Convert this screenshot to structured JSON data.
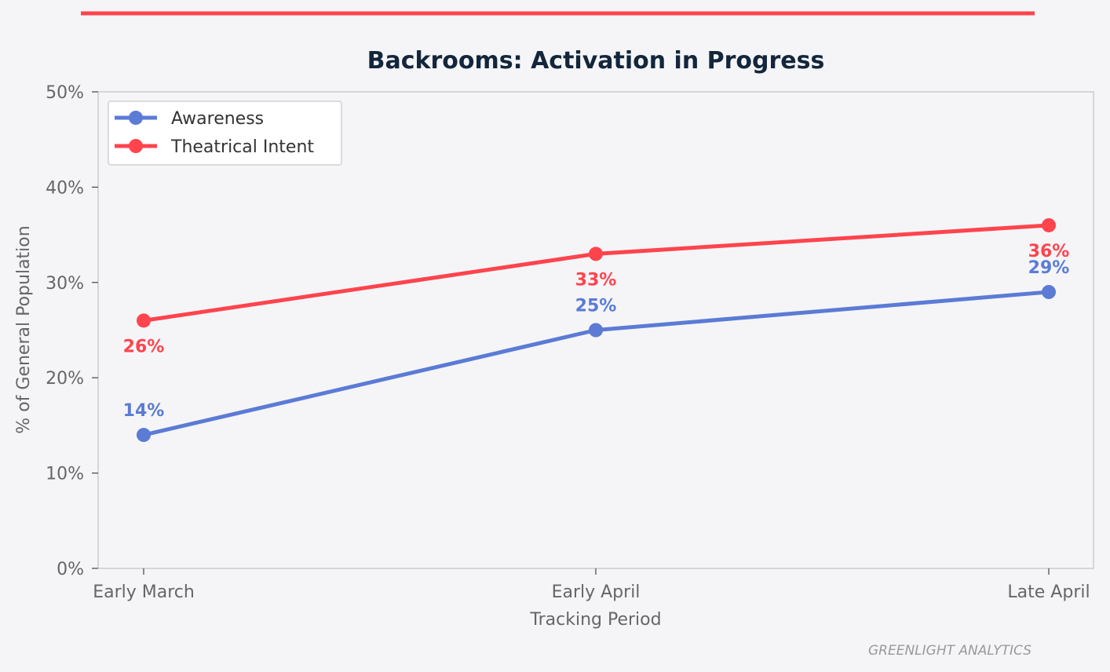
{
  "chart_data": {
    "type": "line",
    "title": "Backrooms: Activation in Progress",
    "xlabel": "Tracking Period",
    "ylabel": "% of General Population",
    "categories": [
      "Early March",
      "Early April",
      "Late April"
    ],
    "ylim": [
      0,
      50
    ],
    "yticks": [
      0,
      10,
      20,
      30,
      40,
      50
    ],
    "ytick_labels": [
      "0%",
      "10%",
      "20%",
      "30%",
      "40%",
      "50%"
    ],
    "grid": false,
    "legend_position": "top-left",
    "series": [
      {
        "name": "Awareness",
        "color": "#5b7bd5",
        "values": [
          14,
          25,
          29
        ],
        "labels": [
          "14%",
          "25%",
          "29%"
        ],
        "label_position": "above"
      },
      {
        "name": "Theatrical Intent",
        "color": "#ff444d",
        "values": [
          26,
          33,
          36
        ],
        "labels": [
          "26%",
          "33%",
          "36%"
        ],
        "label_position": "below"
      }
    ],
    "accent_color": "#ff444d",
    "credit": "GREENLIGHT ANALYTICS"
  }
}
